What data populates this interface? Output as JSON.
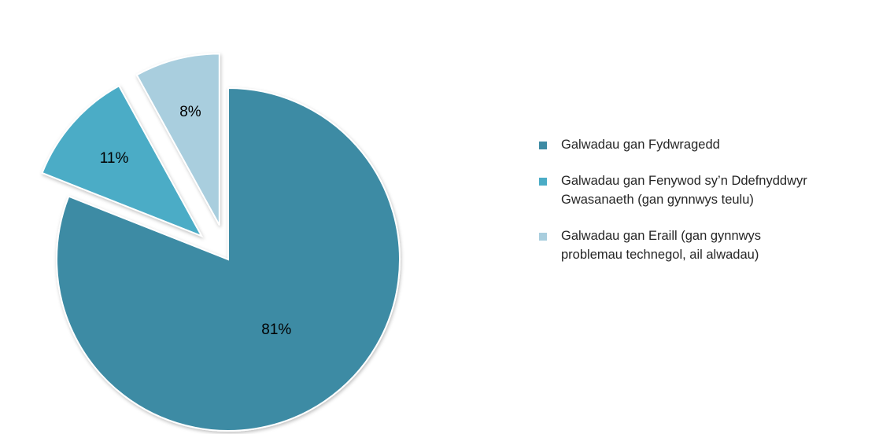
{
  "chart_data": {
    "type": "pie",
    "categories": [
      "Galwadau gan Fydwragedd",
      "Galwadau gan Fenywod sy’n Ddefnyddwyr\nGwasanaeth (gan gynnwys teulu)",
      "Galwadau gan Eraill (gan gynnwys\nproblemau technegol, ail alwadau)"
    ],
    "values": [
      81,
      11,
      8
    ],
    "data_labels": [
      "81%",
      "11%",
      "8%"
    ],
    "colors": [
      "#3E8BA4",
      "#4BACC6",
      "#A9CEDE"
    ],
    "exploded": [
      false,
      true,
      true
    ],
    "legend_position": "right"
  }
}
